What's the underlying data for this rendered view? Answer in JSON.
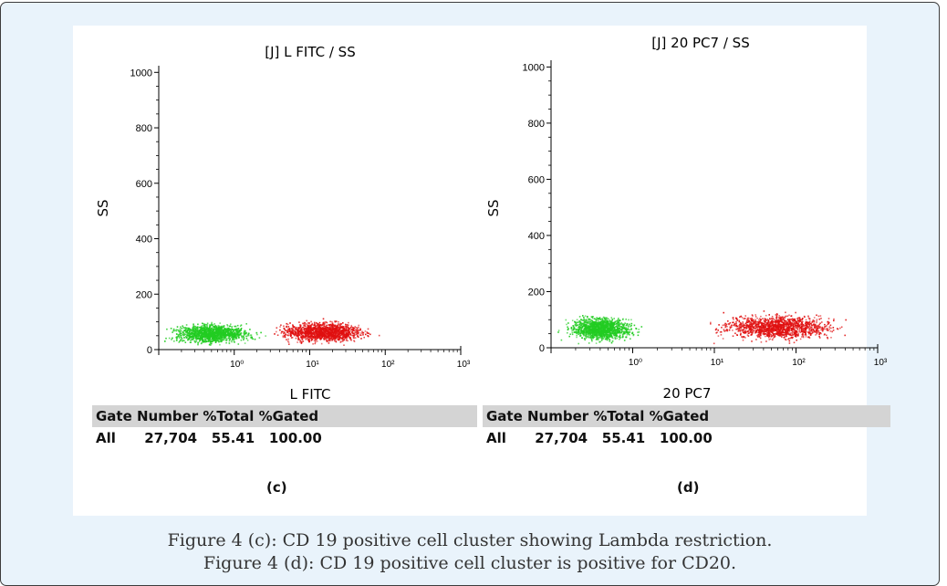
{
  "chart_data": [
    {
      "type": "scatter",
      "panel_label": "(c)",
      "title": "[J] L FITC / SS",
      "xlabel": "L FITC",
      "ylabel": "SS",
      "x_scale": "log",
      "xlim": [
        0.1,
        1000
      ],
      "ylim": [
        0,
        1024
      ],
      "y_ticks": [
        0,
        200,
        400,
        600,
        800,
        1000
      ],
      "x_ticks": [
        "10⁰",
        "10¹",
        "10²",
        "10³"
      ],
      "grid": false,
      "series": [
        {
          "color": "#22cc22",
          "cluster": {
            "x_range": [
              0.1,
              5
            ],
            "y_range": [
              10,
              110
            ],
            "peak_x": 0.5
          }
        },
        {
          "color": "#e01010",
          "cluster": {
            "x_range": [
              3,
              200
            ],
            "y_range": [
              10,
              120
            ],
            "peak_x": 15
          }
        }
      ],
      "stats": {
        "headers": [
          "Gate",
          "Number",
          "%Total",
          "%Gated"
        ],
        "rows": [
          [
            "All",
            "27,704",
            "55.41",
            "100.00"
          ]
        ]
      }
    },
    {
      "type": "scatter",
      "panel_label": "(d)",
      "title": "[J] 20 PC7 / SS",
      "xlabel": "20 PC7",
      "ylabel": "SS",
      "x_scale": "log",
      "xlim": [
        0.1,
        1000
      ],
      "ylim": [
        0,
        1024
      ],
      "y_ticks": [
        0,
        200,
        400,
        600,
        800,
        1000
      ],
      "x_ticks": [
        "10⁰",
        "10¹",
        "10²",
        "10³"
      ],
      "grid": false,
      "series": [
        {
          "color": "#22cc22",
          "cluster": {
            "x_range": [
              0.1,
              2
            ],
            "y_range": [
              10,
              130
            ],
            "peak_x": 0.4
          }
        },
        {
          "color": "#e01010",
          "cluster": {
            "x_range": [
              2,
              400
            ],
            "y_range": [
              10,
              140
            ],
            "peak_x": 60
          }
        }
      ],
      "stats": {
        "headers": [
          "Gate",
          "Number",
          "%Total",
          "%Gated"
        ],
        "rows": [
          [
            "All",
            "27,704",
            "55.41",
            "100.00"
          ]
        ]
      }
    }
  ],
  "caption": {
    "line1": "Figure 4 (c): CD 19 positive cell cluster showing Lambda restriction.",
    "line2": "Figure 4 (d): CD 19 positive cell cluster is positive for CD20."
  },
  "stats_text": {
    "c": {
      "header": "Gate Number %Total %Gated",
      "row": "All      27,704   55.41   100.00"
    },
    "d": {
      "header": "Gate Number %Total %Gated",
      "row": "All      27,704   55.41   100.00"
    }
  }
}
